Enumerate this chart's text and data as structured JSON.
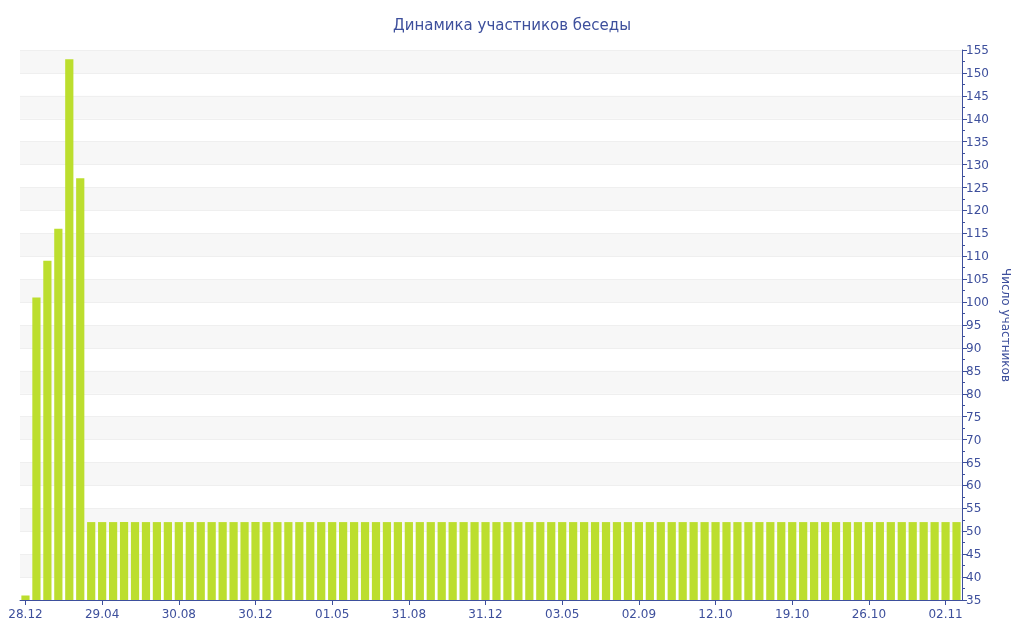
{
  "chart_data": {
    "type": "bar",
    "title": "Динамика участников беседы",
    "ylabel": "Число участников",
    "categories": [
      "28.12",
      null,
      null,
      null,
      null,
      null,
      null,
      "29.04",
      null,
      null,
      null,
      null,
      null,
      null,
      "30.08",
      null,
      null,
      null,
      null,
      null,
      null,
      "30.12",
      null,
      null,
      null,
      null,
      null,
      null,
      "01.05",
      null,
      null,
      null,
      null,
      null,
      null,
      "31.08",
      null,
      null,
      null,
      null,
      null,
      null,
      "31.12",
      null,
      null,
      null,
      null,
      null,
      null,
      "03.05",
      null,
      null,
      null,
      null,
      null,
      null,
      "02.09",
      null,
      null,
      null,
      null,
      null,
      null,
      "12.10",
      null,
      null,
      null,
      null,
      null,
      null,
      "19.10",
      null,
      null,
      null,
      null,
      null,
      null,
      "26.10",
      null,
      null,
      null,
      null,
      null,
      null,
      "02.11",
      null
    ],
    "values": [
      36,
      101,
      109,
      116,
      153,
      127,
      52,
      52,
      52,
      52,
      52,
      52,
      52,
      52,
      52,
      52,
      52,
      52,
      52,
      52,
      52,
      52,
      52,
      52,
      52,
      52,
      52,
      52,
      52,
      52,
      52,
      52,
      52,
      52,
      52,
      52,
      52,
      52,
      52,
      52,
      52,
      52,
      52,
      52,
      52,
      52,
      52,
      52,
      52,
      52,
      52,
      52,
      52,
      52,
      52,
      52,
      52,
      52,
      52,
      52,
      52,
      52,
      52,
      52,
      52,
      52,
      52,
      52,
      52,
      52,
      52,
      52,
      52,
      52,
      52,
      52,
      52,
      52,
      52,
      52,
      52,
      52,
      52,
      52,
      52,
      52
    ],
    "color": "#bcde2e",
    "ylim": [
      35,
      155
    ],
    "yticks": [
      35,
      40,
      45,
      50,
      55,
      60,
      65,
      70,
      75,
      80,
      85,
      90,
      95,
      100,
      105,
      110,
      115,
      120,
      125,
      130,
      135,
      140,
      145,
      150,
      155
    ],
    "grid": "y"
  }
}
